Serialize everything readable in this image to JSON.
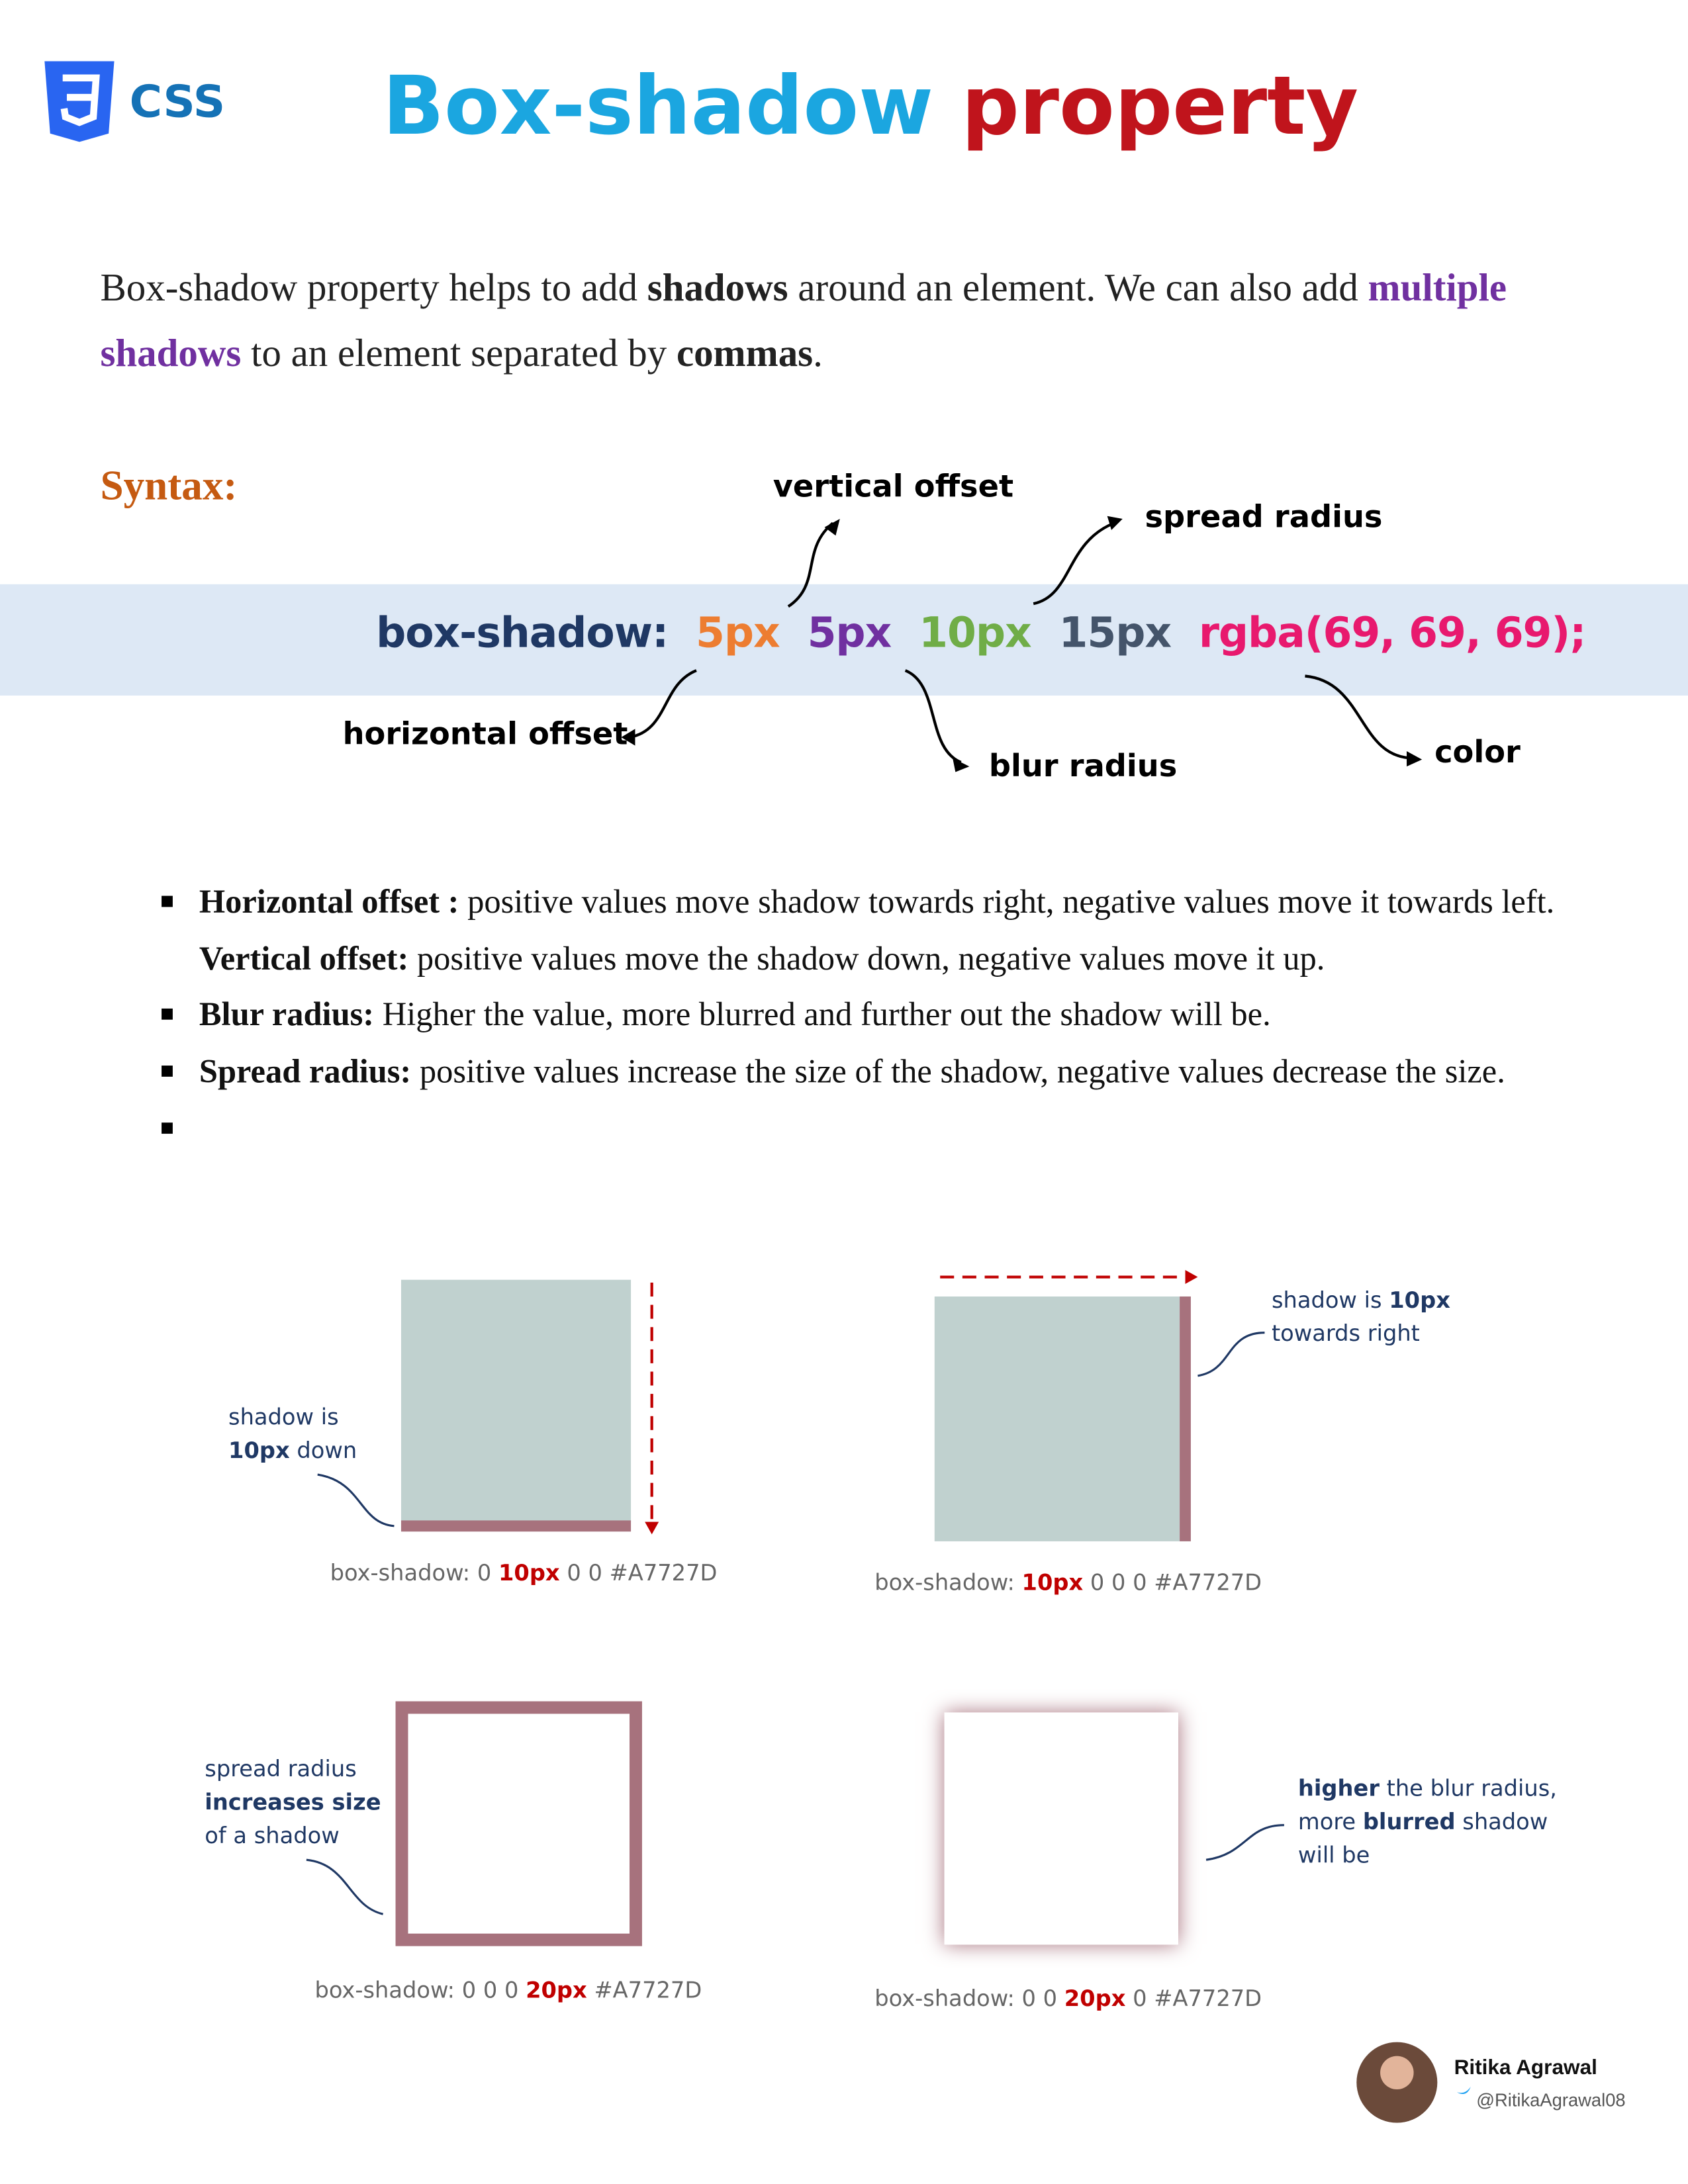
{
  "header": {
    "logo_text": "CSS",
    "title_part1": "Box-shadow",
    "title_part2": "property"
  },
  "intro": {
    "segments": [
      "Box-shadow property helps to add ",
      "shadows",
      " around an element. We can also add ",
      "multiple shadows",
      " to an element separated by ",
      "commas",
      "."
    ]
  },
  "syntax": {
    "label": "Syntax:",
    "code": [
      "box-shadow:",
      "5px",
      "5px",
      "10px",
      "15px",
      "rgba(69, 69, 69);"
    ],
    "annotations": {
      "vertical": "vertical offset",
      "spread": "spread radius",
      "horizontal": "horizontal offset",
      "blur": "blur radius",
      "color": "color"
    }
  },
  "bullets": [
    {
      "term": "Horizontal offset :",
      "text": " positive values move shadow towards right, negative values move it towards left."
    },
    {
      "term": "Vertical offset:",
      "text": " positive values move the shadow down, negative values move it up."
    },
    {
      "term": "Blur radius:",
      "text": " Higher the value, more blurred and further out the shadow will be."
    },
    {
      "term": "Spread radius:",
      "text": " positive values increase the size of the shadow, negative values decrease the size."
    }
  ],
  "examples": [
    {
      "note": [
        "shadow is",
        "10px",
        " down"
      ],
      "code": [
        "box-shadow: 0 ",
        "10px",
        " 0 0 #A7727D"
      ]
    },
    {
      "note": [
        "shadow is ",
        "10px",
        "towards right"
      ],
      "code": [
        "box-shadow: ",
        "10px",
        " 0 0 0 #A7727D"
      ]
    },
    {
      "note": [
        "spread radius",
        "increases size",
        "of a shadow"
      ],
      "code": [
        "box-shadow: 0 0 0 ",
        "20px",
        " #A7727D"
      ]
    },
    {
      "note": [
        "higher",
        " the blur radius,",
        "more ",
        "blurred",
        " shadow",
        "will be"
      ],
      "code": [
        "box-shadow: 0 0 ",
        "20px",
        " 0 #A7727D"
      ]
    }
  ],
  "footer": {
    "name": "Ritika Agrawal",
    "handle": "@RitikaAgrawal08"
  }
}
